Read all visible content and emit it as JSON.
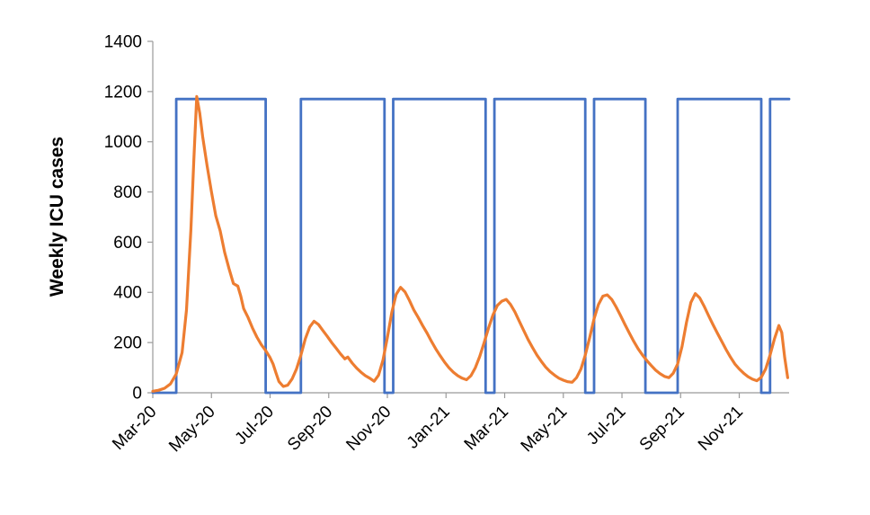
{
  "chart_data": {
    "type": "line",
    "title": "",
    "xlabel": "",
    "ylabel": "Weekly ICU cases",
    "x_unit": "months since Mar-2020",
    "x_range": [
      0,
      21.7
    ],
    "y_range": [
      0,
      1400
    ],
    "y_ticks": [
      0,
      200,
      400,
      600,
      800,
      1000,
      1200,
      1400
    ],
    "x_ticks": [
      {
        "pos": 0,
        "label": "Mar-20"
      },
      {
        "pos": 2,
        "label": "May-20"
      },
      {
        "pos": 4,
        "label": "Jul-20"
      },
      {
        "pos": 6,
        "label": "Sep-20"
      },
      {
        "pos": 8,
        "label": "Nov-20"
      },
      {
        "pos": 10,
        "label": "Jan-21"
      },
      {
        "pos": 12,
        "label": "Mar-21"
      },
      {
        "pos": 14,
        "label": "May-21"
      },
      {
        "pos": 16,
        "label": "Jul-21"
      },
      {
        "pos": 18,
        "label": "Sep-21"
      },
      {
        "pos": 20,
        "label": "Nov-21"
      }
    ],
    "grid": false,
    "legend": "none",
    "colors": {
      "orange_series": "#ED7D31",
      "blue_series": "#4472C4",
      "axis": "#9a9a9a",
      "text": "#000000"
    },
    "series": [
      {
        "name": "unlabeled-square-wave",
        "color": "#4472C4",
        "width": 2.8,
        "high_value": 1170,
        "points": [
          [
            0,
            0
          ],
          [
            0.8,
            0
          ],
          [
            0.8,
            1170
          ],
          [
            3.85,
            1170
          ],
          [
            3.85,
            0
          ],
          [
            5.05,
            0
          ],
          [
            5.05,
            1170
          ],
          [
            7.9,
            1170
          ],
          [
            7.9,
            0
          ],
          [
            8.2,
            0
          ],
          [
            8.2,
            1170
          ],
          [
            11.35,
            1170
          ],
          [
            11.35,
            0
          ],
          [
            11.65,
            0
          ],
          [
            11.65,
            1170
          ],
          [
            14.75,
            1170
          ],
          [
            14.75,
            0
          ],
          [
            15.05,
            0
          ],
          [
            15.05,
            1170
          ],
          [
            16.8,
            1170
          ],
          [
            16.8,
            0
          ],
          [
            17.9,
            0
          ],
          [
            17.9,
            1170
          ],
          [
            20.75,
            1170
          ],
          [
            20.75,
            0
          ],
          [
            21.05,
            0
          ],
          [
            21.05,
            1170
          ],
          [
            21.7,
            1170
          ]
        ]
      },
      {
        "name": "weekly-icu-cases",
        "color": "#ED7D31",
        "width": 3.2,
        "points": [
          [
            0,
            6
          ],
          [
            0.2,
            10
          ],
          [
            0.4,
            18
          ],
          [
            0.6,
            35
          ],
          [
            0.8,
            75
          ],
          [
            1.0,
            160
          ],
          [
            1.15,
            330
          ],
          [
            1.3,
            650
          ],
          [
            1.4,
            930
          ],
          [
            1.5,
            1180
          ],
          [
            1.6,
            1115
          ],
          [
            1.7,
            1020
          ],
          [
            1.85,
            905
          ],
          [
            2.0,
            800
          ],
          [
            2.15,
            705
          ],
          [
            2.3,
            645
          ],
          [
            2.45,
            560
          ],
          [
            2.6,
            495
          ],
          [
            2.75,
            435
          ],
          [
            2.9,
            425
          ],
          [
            3.0,
            385
          ],
          [
            3.1,
            335
          ],
          [
            3.25,
            300
          ],
          [
            3.4,
            258
          ],
          [
            3.55,
            222
          ],
          [
            3.7,
            192
          ],
          [
            3.85,
            168
          ],
          [
            4.0,
            140
          ],
          [
            4.1,
            115
          ],
          [
            4.2,
            80
          ],
          [
            4.3,
            45
          ],
          [
            4.45,
            25
          ],
          [
            4.6,
            30
          ],
          [
            4.75,
            55
          ],
          [
            4.9,
            95
          ],
          [
            5.05,
            150
          ],
          [
            5.2,
            215
          ],
          [
            5.35,
            262
          ],
          [
            5.5,
            285
          ],
          [
            5.65,
            272
          ],
          [
            5.8,
            248
          ],
          [
            5.95,
            225
          ],
          [
            6.1,
            200
          ],
          [
            6.25,
            178
          ],
          [
            6.4,
            155
          ],
          [
            6.55,
            135
          ],
          [
            6.65,
            142
          ],
          [
            6.8,
            118
          ],
          [
            6.95,
            98
          ],
          [
            7.1,
            82
          ],
          [
            7.25,
            68
          ],
          [
            7.4,
            58
          ],
          [
            7.55,
            46
          ],
          [
            7.7,
            70
          ],
          [
            7.85,
            130
          ],
          [
            8.0,
            220
          ],
          [
            8.15,
            320
          ],
          [
            8.3,
            392
          ],
          [
            8.45,
            420
          ],
          [
            8.6,
            402
          ],
          [
            8.75,
            368
          ],
          [
            8.9,
            330
          ],
          [
            9.05,
            300
          ],
          [
            9.2,
            268
          ],
          [
            9.35,
            238
          ],
          [
            9.5,
            205
          ],
          [
            9.65,
            175
          ],
          [
            9.8,
            148
          ],
          [
            9.95,
            122
          ],
          [
            10.1,
            100
          ],
          [
            10.25,
            82
          ],
          [
            10.4,
            68
          ],
          [
            10.55,
            58
          ],
          [
            10.7,
            52
          ],
          [
            10.85,
            68
          ],
          [
            11.0,
            100
          ],
          [
            11.15,
            145
          ],
          [
            11.3,
            200
          ],
          [
            11.45,
            258
          ],
          [
            11.6,
            310
          ],
          [
            11.75,
            348
          ],
          [
            11.9,
            365
          ],
          [
            12.05,
            372
          ],
          [
            12.2,
            352
          ],
          [
            12.35,
            322
          ],
          [
            12.5,
            285
          ],
          [
            12.65,
            248
          ],
          [
            12.8,
            212
          ],
          [
            12.95,
            180
          ],
          [
            13.1,
            150
          ],
          [
            13.25,
            125
          ],
          [
            13.4,
            102
          ],
          [
            13.55,
            84
          ],
          [
            13.7,
            70
          ],
          [
            13.85,
            58
          ],
          [
            14.0,
            50
          ],
          [
            14.15,
            44
          ],
          [
            14.3,
            42
          ],
          [
            14.45,
            60
          ],
          [
            14.6,
            95
          ],
          [
            14.75,
            150
          ],
          [
            14.9,
            220
          ],
          [
            15.05,
            295
          ],
          [
            15.2,
            352
          ],
          [
            15.35,
            385
          ],
          [
            15.5,
            390
          ],
          [
            15.65,
            372
          ],
          [
            15.8,
            342
          ],
          [
            15.95,
            308
          ],
          [
            16.1,
            272
          ],
          [
            16.25,
            238
          ],
          [
            16.4,
            205
          ],
          [
            16.55,
            175
          ],
          [
            16.7,
            150
          ],
          [
            16.85,
            128
          ],
          [
            17.0,
            108
          ],
          [
            17.15,
            90
          ],
          [
            17.3,
            76
          ],
          [
            17.45,
            65
          ],
          [
            17.6,
            60
          ],
          [
            17.75,
            78
          ],
          [
            17.9,
            115
          ],
          [
            18.05,
            185
          ],
          [
            18.2,
            280
          ],
          [
            18.35,
            360
          ],
          [
            18.5,
            395
          ],
          [
            18.65,
            378
          ],
          [
            18.8,
            345
          ],
          [
            18.95,
            308
          ],
          [
            19.1,
            272
          ],
          [
            19.25,
            238
          ],
          [
            19.4,
            205
          ],
          [
            19.55,
            172
          ],
          [
            19.7,
            142
          ],
          [
            19.85,
            115
          ],
          [
            20.0,
            95
          ],
          [
            20.15,
            78
          ],
          [
            20.3,
            64
          ],
          [
            20.45,
            54
          ],
          [
            20.6,
            48
          ],
          [
            20.75,
            62
          ],
          [
            20.9,
            95
          ],
          [
            21.05,
            150
          ],
          [
            21.2,
            215
          ],
          [
            21.35,
            268
          ],
          [
            21.45,
            240
          ],
          [
            21.55,
            140
          ],
          [
            21.65,
            60
          ]
        ]
      }
    ]
  }
}
